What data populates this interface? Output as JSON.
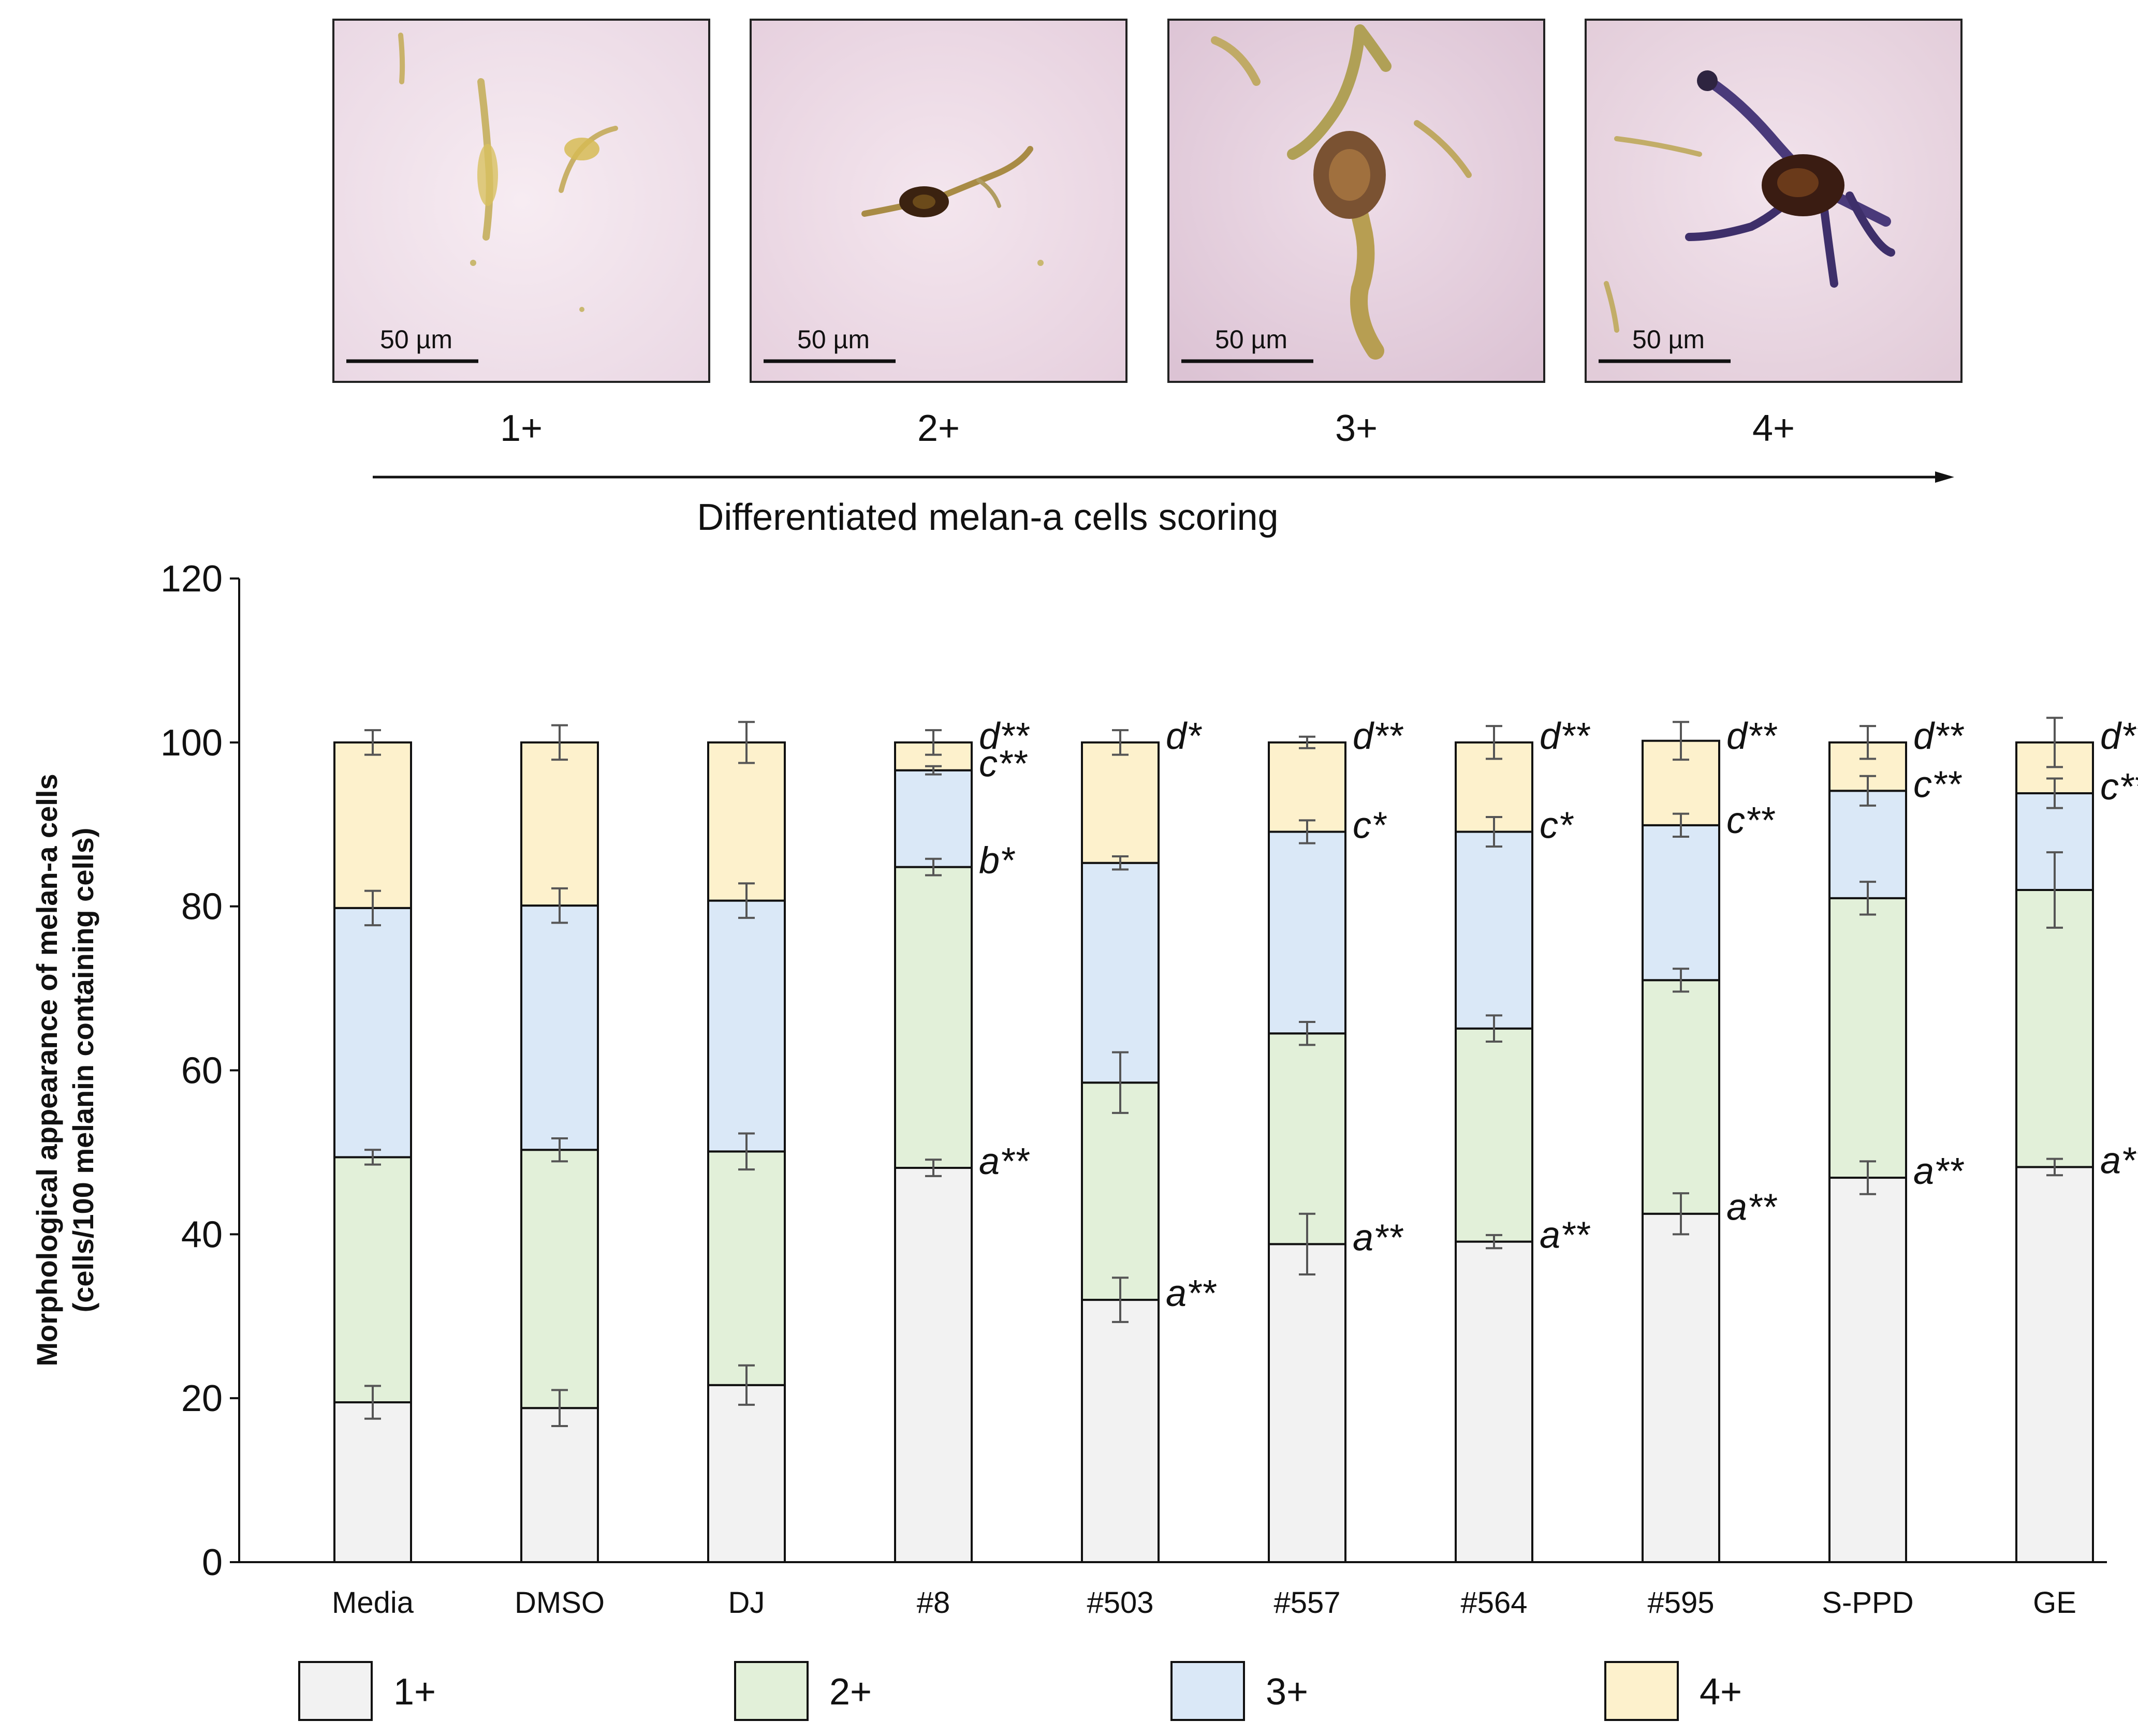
{
  "panels": [
    {
      "label": "1+",
      "scale": "50 µm"
    },
    {
      "label": "2+",
      "scale": "50 µm"
    },
    {
      "label": "3+",
      "scale": "50 µm"
    },
    {
      "label": "4+",
      "scale": "50 µm"
    }
  ],
  "scale_title": "Differentiated melan-a cells scoring",
  "chart_data": {
    "type": "bar",
    "stacked": true,
    "categories": [
      "Media",
      "DMSO",
      "DJ",
      "#8",
      "#503",
      "#557",
      "#564",
      "#595",
      "S-PPD",
      "GE"
    ],
    "ylabel_line1": "Morphological appearance of melan-a cells",
    "ylabel_line2": "(cells/100 melanin containing cells)",
    "ylim": [
      0,
      120
    ],
    "yticks": [
      0,
      20,
      40,
      60,
      80,
      100,
      120
    ],
    "grid": false,
    "legend_position": "bottom",
    "series": [
      {
        "name": "1+",
        "color": "#f2f2f2",
        "values": [
          19.5,
          18.8,
          21.6,
          48.1,
          32.0,
          38.8,
          39.1,
          42.5,
          46.9,
          48.2
        ],
        "errors": [
          2.0,
          2.2,
          2.4,
          1.0,
          2.7,
          3.7,
          0.8,
          2.5,
          2.0,
          1.0
        ]
      },
      {
        "name": "2+",
        "color": "#e2f0d9",
        "values": [
          29.9,
          31.5,
          28.5,
          36.7,
          26.5,
          25.7,
          26.0,
          28.5,
          34.1,
          33.8
        ],
        "errors": [
          0.9,
          1.4,
          2.2,
          1.0,
          3.7,
          1.4,
          1.6,
          1.4,
          2.0,
          4.6
        ]
      },
      {
        "name": "3+",
        "color": "#dae8f7",
        "values": [
          30.4,
          29.8,
          30.6,
          11.8,
          26.8,
          24.6,
          24.0,
          18.9,
          13.1,
          11.8
        ],
        "errors": [
          2.1,
          2.1,
          2.1,
          0.5,
          0.8,
          1.4,
          1.8,
          1.4,
          1.8,
          1.8
        ]
      },
      {
        "name": "4+",
        "color": "#fdf1cc",
        "values": [
          20.2,
          19.9,
          19.3,
          3.4,
          14.7,
          10.9,
          10.9,
          10.3,
          5.9,
          6.2
        ],
        "errors": [
          1.5,
          2.1,
          2.5,
          1.5,
          1.5,
          0.7,
          2.0,
          2.3,
          2.0,
          3.0
        ]
      }
    ],
    "annotations": [
      {
        "category": "#8",
        "level": 100,
        "text": "d**"
      },
      {
        "category": "#8",
        "level": 96.6,
        "text": "c**"
      },
      {
        "category": "#8",
        "level": 84.8,
        "text": "b*"
      },
      {
        "category": "#8",
        "level": 48.1,
        "text": "a**"
      },
      {
        "category": "#503",
        "level": 100,
        "text": "d*"
      },
      {
        "category": "#503",
        "level": 32.0,
        "text": "a**"
      },
      {
        "category": "#557",
        "level": 100,
        "text": "d**"
      },
      {
        "category": "#557",
        "level": 89.1,
        "text": "c*"
      },
      {
        "category": "#557",
        "level": 38.8,
        "text": "a**"
      },
      {
        "category": "#564",
        "level": 100,
        "text": "d**"
      },
      {
        "category": "#564",
        "level": 89.1,
        "text": "c*"
      },
      {
        "category": "#564",
        "level": 39.1,
        "text": "a**"
      },
      {
        "category": "#595",
        "level": 100,
        "text": "d**"
      },
      {
        "category": "#595",
        "level": 89.7,
        "text": "c**"
      },
      {
        "category": "#595",
        "level": 42.5,
        "text": "a**"
      },
      {
        "category": "S-PPD",
        "level": 100,
        "text": "d**"
      },
      {
        "category": "S-PPD",
        "level": 94.1,
        "text": "c**"
      },
      {
        "category": "S-PPD",
        "level": 46.9,
        "text": "a**"
      },
      {
        "category": "GE",
        "level": 100,
        "text": "d**"
      },
      {
        "category": "GE",
        "level": 93.8,
        "text": "c**"
      },
      {
        "category": "GE",
        "level": 48.2,
        "text": "a**"
      }
    ]
  }
}
